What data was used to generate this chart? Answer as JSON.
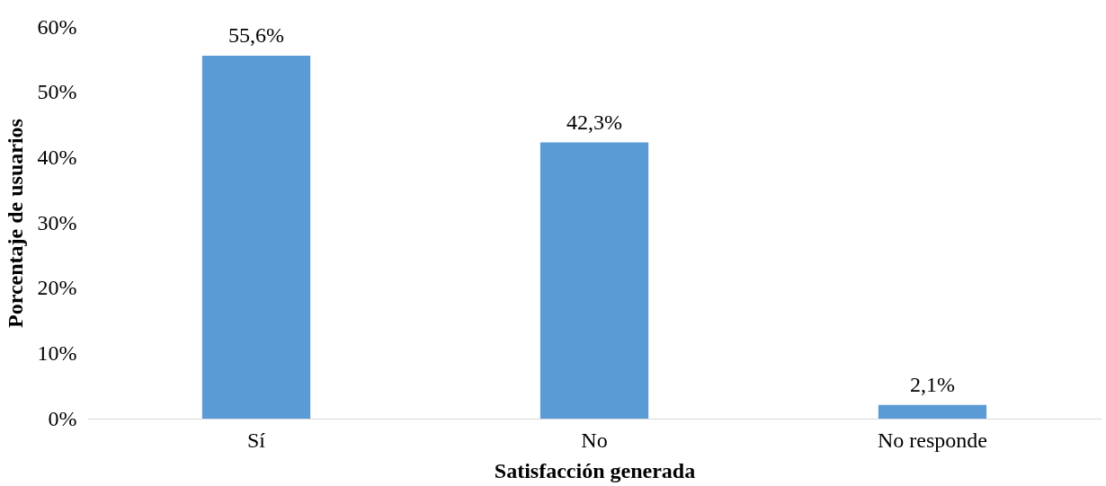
{
  "chart_data": {
    "type": "bar",
    "xlabel": "Satisfacción generada",
    "ylabel": "Porcentaje de usuarios",
    "categories": [
      "Sí",
      "No",
      "No responde"
    ],
    "values": [
      55.6,
      42.3,
      2.1
    ],
    "value_labels": [
      "55,6%",
      "42,3%",
      "2,1%"
    ],
    "color": "#5b9bd5",
    "ylim": [
      0,
      60
    ],
    "yticks": [
      {
        "value": 0,
        "label": "0%"
      },
      {
        "value": 10,
        "label": "10%"
      },
      {
        "value": 20,
        "label": "20%"
      },
      {
        "value": 30,
        "label": "30%"
      },
      {
        "value": 40,
        "label": "40%"
      },
      {
        "value": 50,
        "label": "50%"
      },
      {
        "value": 60,
        "label": "60%"
      }
    ],
    "grid": false
  }
}
